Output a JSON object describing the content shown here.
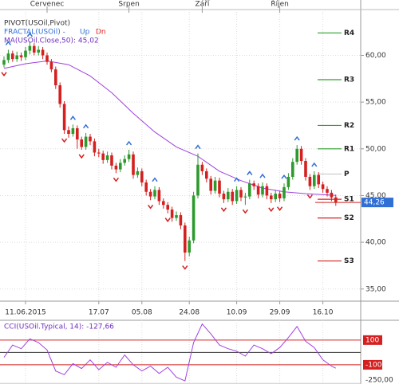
{
  "chart_data": {
    "type": "candlestick",
    "legend": {
      "pivot": "PIVOT(USOil,Pivot)",
      "fractal": "FRACTAL(USOil)  -",
      "up": "Up",
      "dn": "Dn",
      "ma": "MA(USOil.Close,50): 45,02"
    },
    "up_color": "#2e9a2e",
    "down_color": "#d42020",
    "ma_color": "#a040e0",
    "fractal_up_color": "#2f6fd6",
    "fractal_down_color": "#d42020",
    "grid": true,
    "top_categories": [
      null,
      null,
      null,
      null,
      null,
      null,
      null,
      null,
      null,
      null,
      "Červenec",
      null,
      null,
      null,
      null,
      null,
      null,
      null,
      null,
      null,
      null,
      null,
      null,
      null,
      null,
      null,
      null,
      null,
      null,
      "Srpen",
      null,
      null,
      null,
      null,
      null,
      null,
      null,
      null,
      null,
      null,
      null,
      null,
      null,
      null,
      null,
      null,
      "Září",
      null,
      null,
      null,
      null,
      null,
      null,
      null,
      null,
      null,
      null,
      null,
      null,
      null,
      null,
      null,
      null,
      null,
      "Říjen",
      null,
      null,
      null,
      null,
      null,
      null,
      null,
      null,
      null,
      null,
      null,
      null,
      null
    ],
    "categories": [
      null,
      null,
      null,
      null,
      null,
      "11.06.2015",
      null,
      null,
      null,
      null,
      null,
      null,
      null,
      null,
      null,
      null,
      null,
      null,
      null,
      null,
      null,
      null,
      "17.07",
      null,
      null,
      null,
      null,
      null,
      null,
      null,
      null,
      null,
      "05.08",
      null,
      null,
      null,
      null,
      null,
      null,
      null,
      null,
      null,
      null,
      "24.08",
      null,
      null,
      null,
      null,
      null,
      null,
      null,
      null,
      null,
      null,
      "10.09",
      null,
      null,
      null,
      null,
      null,
      null,
      null,
      null,
      null,
      "29.09",
      null,
      null,
      null,
      null,
      null,
      null,
      null,
      null,
      null,
      "16.10",
      null,
      null,
      null
    ],
    "candles": [
      [
        59.0,
        59.9,
        58.7,
        59.5
      ],
      [
        59.5,
        60.6,
        59.2,
        60.2
      ],
      [
        60.2,
        60.5,
        59.3,
        59.6
      ],
      [
        59.6,
        60.4,
        59.3,
        60.0
      ],
      [
        60.0,
        60.3,
        59.4,
        59.8
      ],
      [
        59.8,
        60.9,
        59.5,
        60.5
      ],
      [
        60.5,
        61.5,
        60.1,
        61.0
      ],
      [
        61.0,
        61.3,
        60.0,
        60.3
      ],
      [
        60.3,
        61.0,
        60.0,
        60.6
      ],
      [
        60.6,
        60.9,
        59.6,
        60.0
      ],
      [
        60.0,
        60.3,
        59.0,
        59.3
      ],
      [
        59.3,
        59.6,
        58.2,
        58.5
      ],
      [
        58.5,
        58.8,
        56.4,
        56.8
      ],
      [
        56.8,
        57.1,
        54.4,
        54.8
      ],
      [
        54.8,
        55.1,
        51.6,
        52.0
      ],
      [
        52.0,
        52.4,
        51.2,
        51.6
      ],
      [
        51.6,
        52.6,
        51.3,
        52.2
      ],
      [
        52.2,
        52.5,
        50.0,
        51.0
      ],
      [
        51.0,
        51.3,
        49.9,
        50.2
      ],
      [
        50.2,
        51.7,
        49.9,
        51.3
      ],
      [
        51.3,
        51.6,
        50.4,
        50.8
      ],
      [
        50.8,
        51.1,
        49.2,
        49.6
      ],
      [
        49.6,
        50.0,
        49.1,
        49.5
      ],
      [
        49.5,
        49.8,
        48.4,
        48.8
      ],
      [
        48.8,
        49.7,
        48.5,
        49.3
      ],
      [
        49.3,
        49.6,
        47.8,
        48.2
      ],
      [
        48.2,
        48.5,
        47.4,
        47.8
      ],
      [
        47.8,
        48.9,
        47.5,
        48.5
      ],
      [
        48.5,
        49.3,
        48.2,
        48.9
      ],
      [
        48.9,
        49.9,
        48.6,
        49.4
      ],
      [
        49.4,
        49.7,
        46.8,
        47.2
      ],
      [
        47.2,
        48.0,
        46.9,
        47.6
      ],
      [
        47.6,
        47.9,
        46.0,
        46.4
      ],
      [
        46.4,
        46.7,
        45.0,
        45.4
      ],
      [
        45.4,
        45.7,
        44.5,
        44.9
      ],
      [
        44.9,
        46.0,
        44.6,
        45.6
      ],
      [
        45.6,
        45.9,
        44.0,
        44.4
      ],
      [
        44.4,
        44.7,
        43.6,
        44.0
      ],
      [
        44.0,
        44.3,
        43.1,
        43.5
      ],
      [
        43.5,
        43.8,
        42.2,
        42.6
      ],
      [
        42.6,
        43.3,
        42.3,
        42.9
      ],
      [
        42.9,
        43.2,
        41.4,
        41.8
      ],
      [
        41.8,
        42.1,
        38.0,
        38.9
      ],
      [
        38.9,
        40.6,
        38.5,
        40.2
      ],
      [
        40.2,
        45.4,
        39.9,
        45.0
      ],
      [
        45.0,
        49.5,
        44.7,
        48.3
      ],
      [
        48.3,
        48.6,
        47.2,
        47.6
      ],
      [
        47.6,
        47.9,
        46.4,
        46.8
      ],
      [
        46.8,
        47.1,
        45.1,
        45.5
      ],
      [
        45.5,
        47.0,
        45.2,
        46.6
      ],
      [
        46.6,
        46.9,
        44.8,
        45.2
      ],
      [
        45.2,
        45.5,
        44.2,
        44.6
      ],
      [
        44.6,
        45.8,
        44.3,
        45.4
      ],
      [
        45.4,
        45.7,
        44.0,
        44.4
      ],
      [
        44.4,
        46.0,
        44.1,
        45.6
      ],
      [
        45.6,
        45.9,
        44.4,
        44.8
      ],
      [
        44.8,
        45.3,
        44.0,
        44.9
      ],
      [
        44.9,
        46.7,
        44.6,
        46.3
      ],
      [
        46.3,
        46.6,
        45.6,
        46.0
      ],
      [
        46.0,
        46.3,
        44.7,
        45.1
      ],
      [
        45.1,
        46.4,
        44.8,
        46.0
      ],
      [
        46.0,
        46.3,
        44.6,
        45.0
      ],
      [
        45.0,
        45.3,
        44.2,
        44.6
      ],
      [
        44.6,
        45.6,
        44.3,
        45.2
      ],
      [
        45.2,
        45.5,
        44.3,
        44.7
      ],
      [
        44.7,
        46.3,
        44.4,
        45.9
      ],
      [
        45.9,
        47.4,
        45.6,
        47.0
      ],
      [
        47.0,
        49.0,
        46.7,
        48.6
      ],
      [
        48.6,
        50.4,
        48.3,
        50.0
      ],
      [
        50.0,
        50.3,
        48.3,
        48.7
      ],
      [
        48.7,
        49.0,
        46.6,
        47.0
      ],
      [
        47.0,
        47.3,
        45.6,
        46.0
      ],
      [
        46.0,
        47.6,
        45.7,
        47.2
      ],
      [
        47.2,
        47.5,
        45.8,
        46.2
      ],
      [
        46.2,
        46.5,
        45.3,
        45.7
      ],
      [
        45.7,
        46.0,
        44.9,
        45.3
      ],
      [
        45.3,
        45.6,
        44.4,
        44.8
      ],
      [
        44.8,
        45.1,
        43.9,
        44.26
      ]
    ],
    "ma": {
      "x": [
        0,
        5,
        10,
        15,
        20,
        25,
        30,
        35,
        40,
        45,
        50,
        55,
        60,
        65,
        70,
        77
      ],
      "values": [
        58.6,
        59.1,
        59.4,
        59.0,
        57.8,
        56.0,
        53.8,
        51.8,
        50.2,
        49.2,
        47.6,
        46.6,
        45.8,
        45.4,
        45.2,
        45.02
      ]
    },
    "fractals_up": {
      "x": [
        1,
        6,
        16,
        19,
        29,
        35,
        45,
        54,
        57,
        60,
        65,
        68,
        72
      ],
      "values": [
        60.6,
        61.5,
        52.6,
        51.7,
        49.9,
        46.0,
        49.5,
        46.0,
        46.7,
        46.4,
        46.3,
        50.4,
        47.6
      ]
    },
    "fractals_down": {
      "x": [
        0,
        14,
        18,
        26,
        34,
        38,
        42,
        51,
        56,
        62,
        64,
        71
      ],
      "values": [
        58.7,
        51.6,
        49.9,
        47.4,
        44.5,
        43.1,
        38.0,
        44.2,
        44.0,
        44.2,
        44.3,
        45.6
      ]
    },
    "pivots": [
      {
        "name": "R4",
        "value": 62.4,
        "color": "#2ea02e"
      },
      {
        "name": "R3",
        "value": 57.4,
        "color": "#2ea02e"
      },
      {
        "name": "R2",
        "value": 52.5,
        "color": "#2ea02e"
      },
      {
        "name": "R1",
        "value": 50.0,
        "color": "#2ea02e"
      },
      {
        "name": "P",
        "value": 47.3,
        "color": "#c8c8c8"
      },
      {
        "name": "S1",
        "value": 44.6,
        "color": "#d42020"
      },
      {
        "name": "S2",
        "value": 42.6,
        "color": "#d42020"
      },
      {
        "name": "S3",
        "value": 38.0,
        "color": "#d42020"
      }
    ],
    "last_price": {
      "value": 44.26,
      "label": "44,26"
    },
    "ylim": [
      33.7,
      64.9
    ],
    "yticks": [
      {
        "value": 35,
        "label": "35,00"
      },
      {
        "value": 40,
        "label": "40,00"
      },
      {
        "value": 45,
        "label": "45,00"
      },
      {
        "value": 50,
        "label": "50,00"
      },
      {
        "value": 55,
        "label": "55,00"
      },
      {
        "value": 60,
        "label": "60,00"
      }
    ],
    "cci": {
      "title": "CCI(USOil.Typical, 14): -127,66",
      "color": "#a040e0",
      "x": [
        0,
        2,
        4,
        6,
        8,
        10,
        12,
        14,
        16,
        18,
        20,
        22,
        24,
        26,
        28,
        30,
        32,
        34,
        36,
        38,
        40,
        42,
        44,
        46,
        48,
        50,
        52,
        54,
        56,
        58,
        60,
        62,
        64,
        66,
        68,
        70,
        72,
        74,
        76,
        77
      ],
      "values": [
        -40,
        60,
        30,
        110,
        80,
        20,
        -150,
        -180,
        -90,
        -130,
        -60,
        -140,
        -80,
        -120,
        -20,
        -100,
        -150,
        -110,
        -170,
        -120,
        -200,
        -230,
        80,
        230,
        150,
        60,
        30,
        10,
        -30,
        60,
        30,
        -10,
        40,
        120,
        210,
        90,
        40,
        -60,
        -110,
        -127.66
      ],
      "ylim": [
        -255,
        260
      ],
      "zero": 0,
      "yticks": [
        100,
        -100,
        {
          "value": -250,
          "label": "-250,00"
        }
      ]
    }
  }
}
